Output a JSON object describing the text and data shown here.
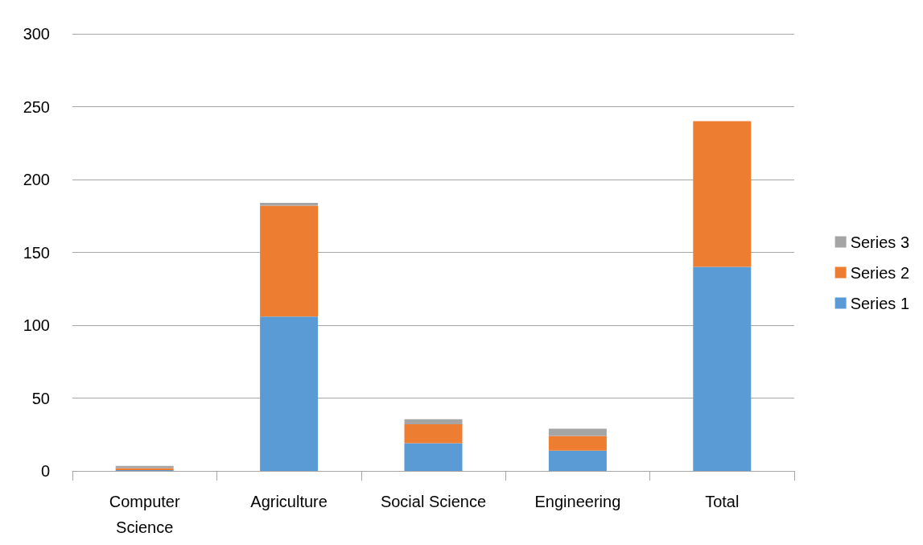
{
  "chart_data": {
    "type": "bar",
    "stacked": true,
    "categories": [
      "Computer\nScience",
      "Agriculture",
      "Social Science",
      "Engineering",
      "Total"
    ],
    "series": [
      {
        "name": "Series 1",
        "color": "#5b9bd5",
        "values": [
          0.5,
          106,
          19,
          14,
          140
        ]
      },
      {
        "name": "Series 2",
        "color": "#ed7d31",
        "values": [
          1.5,
          76,
          13,
          10,
          100
        ]
      },
      {
        "name": "Series 3",
        "color": "#a5a5a5",
        "values": [
          1.5,
          2,
          3.5,
          5,
          0
        ]
      }
    ],
    "ylim": [
      0,
      300
    ],
    "yticks": [
      0,
      50,
      100,
      150,
      200,
      250,
      300
    ],
    "grid": "y",
    "legend": "right"
  }
}
